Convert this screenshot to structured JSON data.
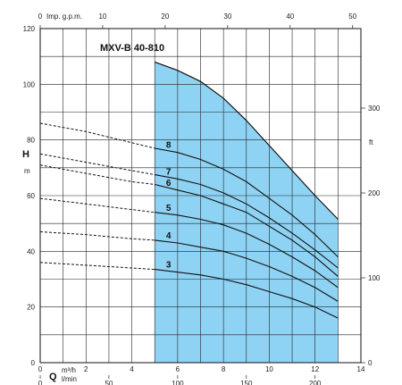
{
  "chart_data": {
    "type": "line",
    "title": "MXV-B 40-810",
    "x_axis": {
      "symbol": "Q",
      "unit_primary": "m³/h",
      "unit_secondary": "l/min",
      "range": [
        0,
        14
      ],
      "ticks": [
        0,
        2,
        4,
        6,
        8,
        10,
        12,
        14
      ],
      "secondary_ticks": [
        0,
        50,
        100,
        150,
        200
      ]
    },
    "top_axis": {
      "label": "Imp. g.p.m.",
      "range": [
        0,
        50
      ],
      "ticks": [
        0,
        10,
        20,
        30,
        40,
        50
      ]
    },
    "y_axis": {
      "symbol": "H",
      "unit": "m",
      "range": [
        0,
        120
      ],
      "ticks": [
        0,
        20,
        40,
        60,
        80,
        100,
        120
      ]
    },
    "right_axis": {
      "unit": "ft",
      "ticks": [
        0,
        100,
        200,
        300
      ]
    },
    "grid": true,
    "operating_range": {
      "q_min": 5,
      "q_max": 13
    },
    "series": [
      {
        "name": "8",
        "x": [
          0,
          2,
          4,
          5,
          6,
          7,
          8,
          9,
          10,
          11,
          12,
          13
        ],
        "y": [
          86,
          83,
          79,
          77,
          75.5,
          73,
          69.5,
          65,
          59,
          53,
          46,
          38
        ]
      },
      {
        "name": "7",
        "x": [
          0,
          2,
          4,
          5,
          6,
          7,
          8,
          9,
          10,
          11,
          12,
          13
        ],
        "y": [
          75,
          72,
          69,
          67.5,
          66,
          64,
          61,
          57,
          52,
          46.5,
          40.5,
          34
        ]
      },
      {
        "name": "6",
        "x": [
          0,
          2,
          4,
          5,
          6,
          7,
          8,
          9,
          10,
          11,
          12,
          13
        ],
        "y": [
          71,
          68,
          65,
          64,
          62,
          60,
          57,
          54,
          49,
          44,
          38,
          31
        ]
      },
      {
        "name": "5",
        "x": [
          0,
          2,
          4,
          5,
          6,
          7,
          8,
          9,
          10,
          11,
          12,
          13
        ],
        "y": [
          59,
          57,
          55,
          54,
          53,
          51.5,
          49.5,
          46.5,
          42.5,
          38,
          33,
          27
        ]
      },
      {
        "name": "4",
        "x": [
          0,
          2,
          4,
          5,
          6,
          7,
          8,
          9,
          10,
          11,
          12,
          13
        ],
        "y": [
          47,
          46,
          44.5,
          44,
          43,
          41.5,
          40,
          37.5,
          34.5,
          31,
          27,
          22
        ]
      },
      {
        "name": "3",
        "x": [
          0,
          2,
          4,
          5,
          6,
          7,
          8,
          9,
          10,
          11,
          12,
          13
        ],
        "y": [
          36,
          35,
          34,
          33.5,
          32.5,
          31.5,
          30,
          28,
          25.5,
          23,
          20,
          16
        ]
      }
    ],
    "max_curve": {
      "x": [
        5,
        6,
        7,
        8,
        9,
        10,
        11,
        12,
        13
      ],
      "y": [
        108,
        105,
        101,
        95,
        87,
        78,
        69,
        60,
        51.5
      ]
    }
  }
}
